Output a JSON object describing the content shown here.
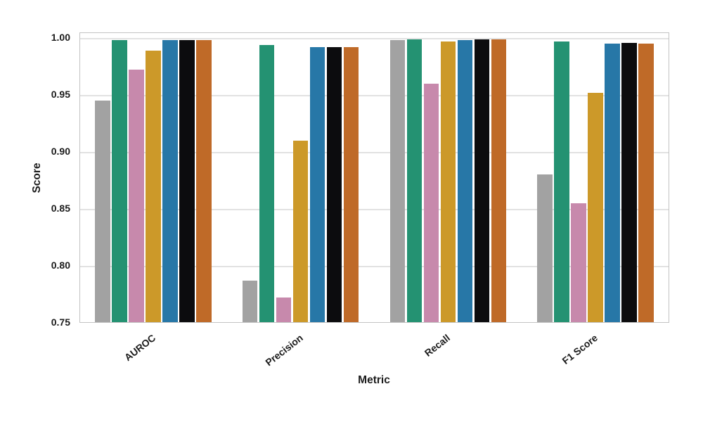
{
  "figure": {
    "background": "#ffffff"
  },
  "chart_data": {
    "type": "bar",
    "title": "",
    "xlabel": "Metric",
    "ylabel": "Score",
    "categories": [
      "AUROC",
      "Precision",
      "Recall",
      "F1 Score"
    ],
    "series": [
      {
        "name": "gray",
        "color": "#a2a2a2",
        "values": [
          0.945,
          0.787,
          0.998,
          0.88
        ]
      },
      {
        "name": "green",
        "color": "#249272",
        "values": [
          0.998,
          0.994,
          0.999,
          0.997
        ]
      },
      {
        "name": "pink",
        "color": "#c789ac",
        "values": [
          0.972,
          0.772,
          0.96,
          0.855
        ]
      },
      {
        "name": "gold",
        "color": "#cc9929",
        "values": [
          0.989,
          0.91,
          0.997,
          0.952
        ]
      },
      {
        "name": "blue",
        "color": "#2777a7",
        "values": [
          0.998,
          0.992,
          0.998,
          0.995
        ]
      },
      {
        "name": "black",
        "color": "#0c0c0e",
        "values": [
          0.998,
          0.992,
          0.999,
          0.996
        ]
      },
      {
        "name": "orange",
        "color": "#bf6a28",
        "values": [
          0.998,
          0.992,
          0.999,
          0.995
        ]
      }
    ],
    "ylim": [
      0.75,
      1.005
    ],
    "yticks": [
      0.75,
      0.8,
      0.85,
      0.9,
      0.95,
      1.0
    ],
    "grid": true,
    "legend_position": "none",
    "bar_group_fraction": 0.8
  }
}
